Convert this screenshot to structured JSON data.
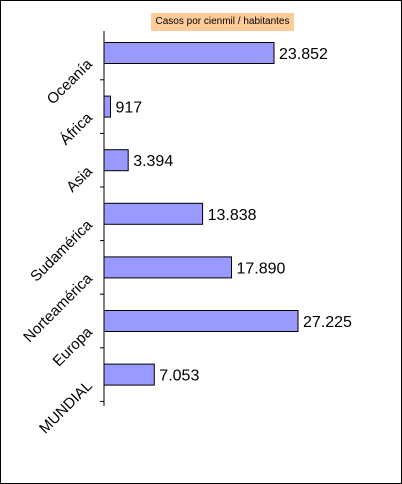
{
  "chart_data": {
    "type": "bar",
    "orientation": "horizontal",
    "legend": "Casos por cienmil / habitantes",
    "legend_position": "top",
    "categories": [
      "Oceanía",
      "África",
      "Asia",
      "Sudamérica",
      "Norteamérica",
      "Europa",
      "MUNDIAL"
    ],
    "values": [
      23852,
      917,
      3394,
      13838,
      17890,
      27225,
      7053
    ],
    "value_labels": [
      "23.852",
      "917",
      "3.394",
      "13.838",
      "17.890",
      "27.225",
      "7.053"
    ],
    "xlim": [
      0,
      30000
    ],
    "grid": false,
    "colors": {
      "bar_fill": "#9999ff",
      "bar_stroke": "#000000",
      "legend_bg": "#ffcc99"
    }
  }
}
